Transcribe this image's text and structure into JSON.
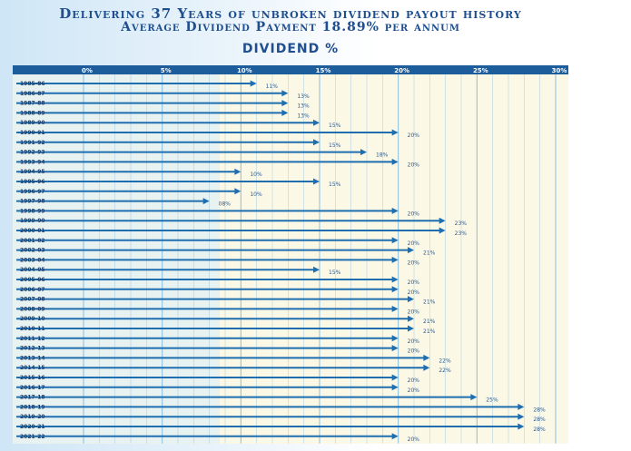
{
  "header": {
    "line1": "Delivering 37 Years of unbroken dividend payout history",
    "line2": "Average Dividend Payment 18.89% per annum"
  },
  "colors": {
    "heading": "#1f4f8f",
    "arrow": "#1f6fb0",
    "axis_band": "#1e5d9c",
    "plot_bg": "#fbf8e6",
    "grid": "#7fb8e0"
  },
  "chart_data": {
    "type": "bar",
    "orientation": "horizontal",
    "title": "DIVIDEND %",
    "xlim": [
      0,
      30
    ],
    "xticks": [
      "0%",
      "5%",
      "10%",
      "15%",
      "20%",
      "25%",
      "30%"
    ],
    "grid": true,
    "marker": "arrow",
    "categories": [
      "1985-86",
      "1986-87",
      "1987-88",
      "1988-89",
      "1989-90",
      "1990-91",
      "1991-92",
      "1992-93",
      "1993-94",
      "1994-95",
      "1995-96",
      "1996-97",
      "1997-98",
      "1998-99",
      "1999-00",
      "2000-01",
      "2001-02",
      "2002-03",
      "2003-04",
      "2004-05",
      "2005-06",
      "2006-07",
      "2007-08",
      "2008-09",
      "2009-10",
      "2010-11",
      "2011-12",
      "2012-13",
      "2013-14",
      "2014-15",
      "2015-16",
      "2016-17",
      "2017-18",
      "2018-19",
      "2019-20",
      "2020-21",
      "2021-22"
    ],
    "values": [
      11,
      13,
      13,
      13,
      15,
      20,
      15,
      18,
      20,
      10,
      15,
      10,
      8,
      20,
      23,
      23,
      20,
      21,
      20,
      15,
      20,
      20,
      21,
      20,
      21,
      21,
      20,
      20,
      22,
      22,
      20,
      20,
      25,
      28,
      28,
      28,
      20
    ],
    "labels": [
      "11%",
      "13%",
      "13%",
      "13%",
      "15%",
      "20%",
      "15%",
      "18%",
      "20%",
      "10%",
      "15%",
      "10%",
      "08%",
      "20%",
      "23%",
      "23%",
      "20%",
      "21%",
      "20%",
      "15%",
      "20%",
      "20%",
      "21%",
      "20%",
      "21%",
      "21%",
      "20%",
      "20%",
      "22%",
      "22%",
      "20%",
      "20%",
      "25%",
      "28%",
      "28%",
      "28%",
      "20%"
    ]
  }
}
